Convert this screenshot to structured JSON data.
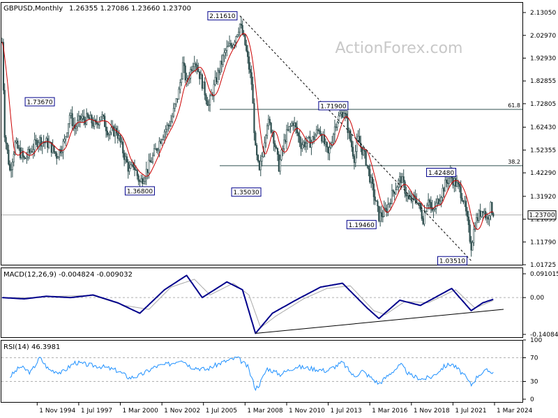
{
  "header": {
    "symbol_label": "GBPUSD,Monthly",
    "ohlc_label": "1.26355 1.27086 1.23660 1.23700"
  },
  "watermark": "ActionForex.com",
  "colors": {
    "candle": "#2f4f4f",
    "moving_average": "#cc0000",
    "macd": "#00008b",
    "signal": "#a9a9a9",
    "rsi": "#1e90ff",
    "grid": "#c0c0c0",
    "frame": "#000000"
  },
  "chart_data": [
    {
      "type": "candlestick",
      "panel": "price",
      "y_ticks": [
        "2.13050",
        "2.02970",
        "1.92930",
        "1.82855",
        "1.72805",
        "1.62430",
        "1.52355",
        "1.42290",
        "1.31920",
        "1.21835",
        "1.11790",
        "1.01725"
      ],
      "ylim": [
        1.01725,
        2.1305
      ],
      "current_price_label": "1.23700",
      "horizontal_lines": [
        {
          "label": "61.8",
          "value": 1.7029
        },
        {
          "label": "38.2",
          "value": 1.4545
        },
        {
          "label": "",
          "value": 1.237
        }
      ],
      "trendline": {
        "x": [
          "2007-11-01",
          "2022-09-01"
        ],
        "y": [
          2.1161,
          1.0351
        ]
      },
      "annotations": [
        {
          "label": "1.73670",
          "x": "1995-01-01",
          "y": 1.7367
        },
        {
          "label": "1.36800",
          "x": "2001-06-01",
          "y": 1.368
        },
        {
          "label": "2.11610",
          "x": "2007-11-01",
          "y": 2.1161
        },
        {
          "label": "1.35030",
          "x": "2009-01-01",
          "y": 1.3503
        },
        {
          "label": "1.71900",
          "x": "2014-07-01",
          "y": 1.719
        },
        {
          "label": "1.19460",
          "x": "2016-10-01",
          "y": 1.1946
        },
        {
          "label": "1.42480",
          "x": "2021-06-01",
          "y": 1.4248
        },
        {
          "label": "1.03510",
          "x": "2022-09-01",
          "y": 1.0351
        }
      ],
      "key_points": [
        {
          "x": "1992-08-01",
          "y": 2.0
        },
        {
          "x": "1992-10-01",
          "y": 1.6
        },
        {
          "x": "1993-02-01",
          "y": 1.43
        },
        {
          "x": "1993-06-01",
          "y": 1.55
        },
        {
          "x": "1994-01-01",
          "y": 1.48
        },
        {
          "x": "1994-06-01",
          "y": 1.52
        },
        {
          "x": "1994-12-01",
          "y": 1.57
        },
        {
          "x": "1995-08-01",
          "y": 1.55
        },
        {
          "x": "1996-02-01",
          "y": 1.5
        },
        {
          "x": "1996-08-01",
          "y": 1.56
        },
        {
          "x": "1996-12-01",
          "y": 1.68
        },
        {
          "x": "1997-04-01",
          "y": 1.62
        },
        {
          "x": "1997-08-01",
          "y": 1.66
        },
        {
          "x": "1998-03-01",
          "y": 1.66
        },
        {
          "x": "1998-08-01",
          "y": 1.63
        },
        {
          "x": "1998-12-01",
          "y": 1.68
        },
        {
          "x": "1999-06-01",
          "y": 1.6
        },
        {
          "x": "1999-12-01",
          "y": 1.61
        },
        {
          "x": "2000-06-01",
          "y": 1.5
        },
        {
          "x": "2000-10-01",
          "y": 1.43
        },
        {
          "x": "2001-01-01",
          "y": 1.46
        },
        {
          "x": "2001-06-01",
          "y": 1.38
        },
        {
          "x": "2001-12-01",
          "y": 1.44
        },
        {
          "x": "2002-06-01",
          "y": 1.52
        },
        {
          "x": "2002-12-01",
          "y": 1.6
        },
        {
          "x": "2003-06-01",
          "y": 1.65
        },
        {
          "x": "2003-12-01",
          "y": 1.78
        },
        {
          "x": "2004-03-01",
          "y": 1.9
        },
        {
          "x": "2004-06-01",
          "y": 1.82
        },
        {
          "x": "2004-12-01",
          "y": 1.93
        },
        {
          "x": "2005-06-01",
          "y": 1.82
        },
        {
          "x": "2005-11-01",
          "y": 1.72
        },
        {
          "x": "2006-06-01",
          "y": 1.86
        },
        {
          "x": "2006-12-01",
          "y": 1.96
        },
        {
          "x": "2007-06-01",
          "y": 2.0
        },
        {
          "x": "2007-11-01",
          "y": 2.08
        },
        {
          "x": "2008-03-01",
          "y": 1.99
        },
        {
          "x": "2008-08-01",
          "y": 1.82
        },
        {
          "x": "2008-11-01",
          "y": 1.52
        },
        {
          "x": "2009-02-01",
          "y": 1.42
        },
        {
          "x": "2009-08-01",
          "y": 1.65
        },
        {
          "x": "2009-12-01",
          "y": 1.61
        },
        {
          "x": "2010-05-01",
          "y": 1.45
        },
        {
          "x": "2010-10-01",
          "y": 1.58
        },
        {
          "x": "2011-04-01",
          "y": 1.65
        },
        {
          "x": "2011-10-01",
          "y": 1.55
        },
        {
          "x": "2012-06-01",
          "y": 1.56
        },
        {
          "x": "2012-12-01",
          "y": 1.62
        },
        {
          "x": "2013-07-01",
          "y": 1.5
        },
        {
          "x": "2014-01-01",
          "y": 1.65
        },
        {
          "x": "2014-07-01",
          "y": 1.7
        },
        {
          "x": "2015-03-01",
          "y": 1.49
        },
        {
          "x": "2015-06-01",
          "y": 1.57
        },
        {
          "x": "2015-12-01",
          "y": 1.48
        },
        {
          "x": "2016-06-01",
          "y": 1.33
        },
        {
          "x": "2016-10-01",
          "y": 1.23
        },
        {
          "x": "2017-03-01",
          "y": 1.25
        },
        {
          "x": "2017-09-01",
          "y": 1.34
        },
        {
          "x": "2018-03-01",
          "y": 1.4
        },
        {
          "x": "2018-09-01",
          "y": 1.3
        },
        {
          "x": "2019-03-01",
          "y": 1.31
        },
        {
          "x": "2019-08-01",
          "y": 1.22
        },
        {
          "x": "2019-12-01",
          "y": 1.32
        },
        {
          "x": "2020-03-01",
          "y": 1.24
        },
        {
          "x": "2020-12-01",
          "y": 1.36
        },
        {
          "x": "2021-05-01",
          "y": 1.41
        },
        {
          "x": "2021-12-01",
          "y": 1.35
        },
        {
          "x": "2022-03-01",
          "y": 1.31
        },
        {
          "x": "2022-06-01",
          "y": 1.21
        },
        {
          "x": "2022-09-01",
          "y": 1.1
        },
        {
          "x": "2022-12-01",
          "y": 1.2
        },
        {
          "x": "2023-06-01",
          "y": 1.27
        },
        {
          "x": "2023-09-01",
          "y": 1.22
        },
        {
          "x": "2023-12-01",
          "y": 1.27
        },
        {
          "x": "2024-03-01",
          "y": 1.24
        }
      ]
    },
    {
      "type": "line",
      "panel": "macd",
      "label": "MACD(12,26,9) -0.004824 -0.009032",
      "y_ticks": [
        "0.091015",
        "0.00",
        "-0.140843"
      ],
      "ylim": [
        -0.140843,
        0.091015
      ],
      "trendline": {
        "x": [
          "2008-11-01",
          "2024-03-01"
        ],
        "y": [
          -0.137,
          -0.045
        ]
      },
      "macd_points": [
        {
          "x": "1992-08-01",
          "y": 0.0
        },
        {
          "x": "1994-01-01",
          "y": -0.005
        },
        {
          "x": "1995-06-01",
          "y": 0.005
        },
        {
          "x": "1997-01-01",
          "y": 0.0
        },
        {
          "x": "1998-06-01",
          "y": 0.01
        },
        {
          "x": "2000-01-01",
          "y": -0.02
        },
        {
          "x": "2001-06-01",
          "y": -0.06
        },
        {
          "x": "2003-01-01",
          "y": 0.03
        },
        {
          "x": "2004-06-01",
          "y": 0.085
        },
        {
          "x": "2005-06-01",
          "y": 0.0
        },
        {
          "x": "2007-01-01",
          "y": 0.06
        },
        {
          "x": "2008-01-01",
          "y": 0.03
        },
        {
          "x": "2008-11-01",
          "y": -0.137
        },
        {
          "x": "2009-12-01",
          "y": -0.06
        },
        {
          "x": "2011-06-01",
          "y": -0.01
        },
        {
          "x": "2013-01-01",
          "y": 0.04
        },
        {
          "x": "2014-06-01",
          "y": 0.055
        },
        {
          "x": "2016-01-01",
          "y": -0.04
        },
        {
          "x": "2016-10-01",
          "y": -0.08
        },
        {
          "x": "2018-02-01",
          "y": -0.01
        },
        {
          "x": "2019-06-01",
          "y": -0.03
        },
        {
          "x": "2021-06-01",
          "y": 0.035
        },
        {
          "x": "2022-09-01",
          "y": -0.05
        },
        {
          "x": "2023-06-01",
          "y": -0.02
        },
        {
          "x": "2024-03-01",
          "y": -0.005
        }
      ],
      "signal_points": [
        {
          "x": "1992-08-01",
          "y": 0.0
        },
        {
          "x": "1994-06-01",
          "y": 0.0
        },
        {
          "x": "1996-01-01",
          "y": 0.005
        },
        {
          "x": "1998-06-01",
          "y": 0.008
        },
        {
          "x": "2000-06-01",
          "y": -0.03
        },
        {
          "x": "2002-01-01",
          "y": -0.045
        },
        {
          "x": "2003-06-01",
          "y": 0.04
        },
        {
          "x": "2004-12-01",
          "y": 0.07
        },
        {
          "x": "2005-12-01",
          "y": 0.01
        },
        {
          "x": "2007-06-01",
          "y": 0.055
        },
        {
          "x": "2008-06-01",
          "y": 0.01
        },
        {
          "x": "2009-03-01",
          "y": -0.115
        },
        {
          "x": "2010-03-01",
          "y": -0.07
        },
        {
          "x": "2011-12-01",
          "y": -0.005
        },
        {
          "x": "2013-06-01",
          "y": 0.035
        },
        {
          "x": "2014-12-01",
          "y": 0.045
        },
        {
          "x": "2016-06-01",
          "y": -0.05
        },
        {
          "x": "2017-03-01",
          "y": -0.065
        },
        {
          "x": "2018-06-01",
          "y": -0.015
        },
        {
          "x": "2019-12-01",
          "y": -0.02
        },
        {
          "x": "2021-09-01",
          "y": 0.03
        },
        {
          "x": "2022-12-01",
          "y": -0.04
        },
        {
          "x": "2024-03-01",
          "y": -0.009
        }
      ]
    },
    {
      "type": "line",
      "panel": "rsi",
      "label": "RSI(14) 46.3981",
      "y_ticks": [
        "100",
        "70",
        "30",
        "0"
      ],
      "ylim": [
        0,
        100
      ],
      "levels": [
        70,
        30
      ],
      "points": [
        {
          "x": "1993-02-01",
          "y": 38
        },
        {
          "x": "1993-10-01",
          "y": 55
        },
        {
          "x": "1994-06-01",
          "y": 45
        },
        {
          "x": "1995-01-01",
          "y": 70
        },
        {
          "x": "1995-08-01",
          "y": 50
        },
        {
          "x": "1996-06-01",
          "y": 45
        },
        {
          "x": "1997-04-01",
          "y": 62
        },
        {
          "x": "1998-02-01",
          "y": 58
        },
        {
          "x": "1999-01-01",
          "y": 55
        },
        {
          "x": "2000-01-01",
          "y": 48
        },
        {
          "x": "2000-10-01",
          "y": 36
        },
        {
          "x": "2001-06-01",
          "y": 40
        },
        {
          "x": "2002-06-01",
          "y": 55
        },
        {
          "x": "2003-06-01",
          "y": 60
        },
        {
          "x": "2004-02-01",
          "y": 68
        },
        {
          "x": "2004-09-01",
          "y": 55
        },
        {
          "x": "2005-09-01",
          "y": 50
        },
        {
          "x": "2006-09-01",
          "y": 62
        },
        {
          "x": "2007-09-01",
          "y": 70
        },
        {
          "x": "2008-05-01",
          "y": 55
        },
        {
          "x": "2008-11-01",
          "y": 18
        },
        {
          "x": "2009-02-01",
          "y": 25
        },
        {
          "x": "2009-08-01",
          "y": 52
        },
        {
          "x": "2010-06-01",
          "y": 42
        },
        {
          "x": "2011-06-01",
          "y": 55
        },
        {
          "x": "2012-06-01",
          "y": 52
        },
        {
          "x": "2013-06-01",
          "y": 48
        },
        {
          "x": "2014-06-01",
          "y": 62
        },
        {
          "x": "2015-03-01",
          "y": 38
        },
        {
          "x": "2015-09-01",
          "y": 48
        },
        {
          "x": "2016-10-01",
          "y": 26
        },
        {
          "x": "2017-09-01",
          "y": 48
        },
        {
          "x": "2018-03-01",
          "y": 58
        },
        {
          "x": "2018-10-01",
          "y": 40
        },
        {
          "x": "2019-08-01",
          "y": 34
        },
        {
          "x": "2020-03-01",
          "y": 38
        },
        {
          "x": "2020-12-01",
          "y": 55
        },
        {
          "x": "2021-06-01",
          "y": 60
        },
        {
          "x": "2022-03-01",
          "y": 42
        },
        {
          "x": "2022-09-01",
          "y": 24
        },
        {
          "x": "2023-03-01",
          "y": 42
        },
        {
          "x": "2023-09-01",
          "y": 48
        },
        {
          "x": "2024-03-01",
          "y": 46
        }
      ]
    }
  ],
  "x_axis": {
    "ticks": [
      {
        "label": "1 Nov 1994",
        "x": "1994-11-01"
      },
      {
        "label": "1 Jul 1997",
        "x": "1997-07-01"
      },
      {
        "label": "1 Mar 2000",
        "x": "2000-03-01"
      },
      {
        "label": "1 Nov 2002",
        "x": "2002-11-01"
      },
      {
        "label": "1 Jul 2005",
        "x": "2005-07-01"
      },
      {
        "label": "1 Mar 2008",
        "x": "2008-03-01"
      },
      {
        "label": "1 Nov 2010",
        "x": "2010-11-01"
      },
      {
        "label": "1 Jul 2013",
        "x": "2013-07-01"
      },
      {
        "label": "1 Mar 2016",
        "x": "2016-03-01"
      },
      {
        "label": "1 Nov 2018",
        "x": "2018-11-01"
      },
      {
        "label": "1 Jul 2021",
        "x": "2021-07-01"
      },
      {
        "label": "1 Mar 2024",
        "x": "2024-03-01"
      }
    ]
  }
}
